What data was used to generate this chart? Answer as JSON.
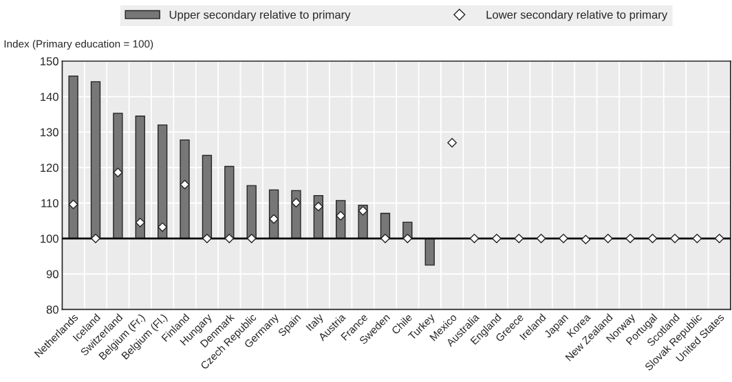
{
  "chart_data": {
    "type": "bar",
    "ylabel": "Index (Primary education = 100)",
    "categories": [
      "Netherlands",
      "Iceland",
      "Switzerland",
      "Belgium (Fr.)",
      "Belgium (Fl.)",
      "Finland",
      "Hungary",
      "Denmark",
      "Czech Republic",
      "Germany",
      "Spain",
      "Italy",
      "Austria",
      "France",
      "Sweden",
      "Chile",
      "Turkey",
      "Mexico",
      "Australia",
      "England",
      "Greece",
      "Ireland",
      "Japan",
      "Korea",
      "New Zealand",
      "Norway",
      "Portugal",
      "Scotland",
      "Slovak Republic",
      "United States"
    ],
    "series": [
      {
        "name": "Upper secondary relative to primary",
        "color": "#777777",
        "base": [
          100,
          100,
          100,
          100,
          100,
          100,
          100,
          100,
          100,
          100,
          100,
          100,
          100,
          100,
          100,
          100,
          100,
          null,
          null,
          null,
          null,
          null,
          null,
          null,
          null,
          null,
          null,
          null,
          null,
          null
        ],
        "values": [
          45.8,
          44.2,
          35.3,
          34.5,
          32.0,
          27.8,
          23.4,
          20.3,
          14.9,
          13.7,
          13.5,
          12.1,
          10.7,
          9.4,
          7.1,
          4.6,
          -7.5,
          null,
          null,
          null,
          null,
          null,
          null,
          null,
          null,
          null,
          null,
          null,
          null,
          null
        ]
      },
      {
        "name": "Lower secondary relative to primary",
        "type": "scatter",
        "marker": "diamond",
        "color": "#ffffff",
        "values": [
          109.6,
          100,
          118.6,
          104.5,
          103.2,
          115.2,
          100,
          100,
          100,
          105.5,
          110.1,
          109.0,
          106.4,
          107.8,
          100,
          100,
          null,
          127.0,
          100,
          100,
          100,
          100,
          100,
          99.7,
          100,
          100,
          100,
          100,
          100,
          100
        ]
      }
    ],
    "ylim": [
      80,
      150
    ],
    "yticks": [
      80,
      90,
      100,
      110,
      120,
      130,
      140,
      150
    ],
    "ref_lines": [
      {
        "axis": "y",
        "value": 100,
        "color": "#000000",
        "line_style": "solid"
      }
    ],
    "grid": true,
    "legend": "top"
  }
}
